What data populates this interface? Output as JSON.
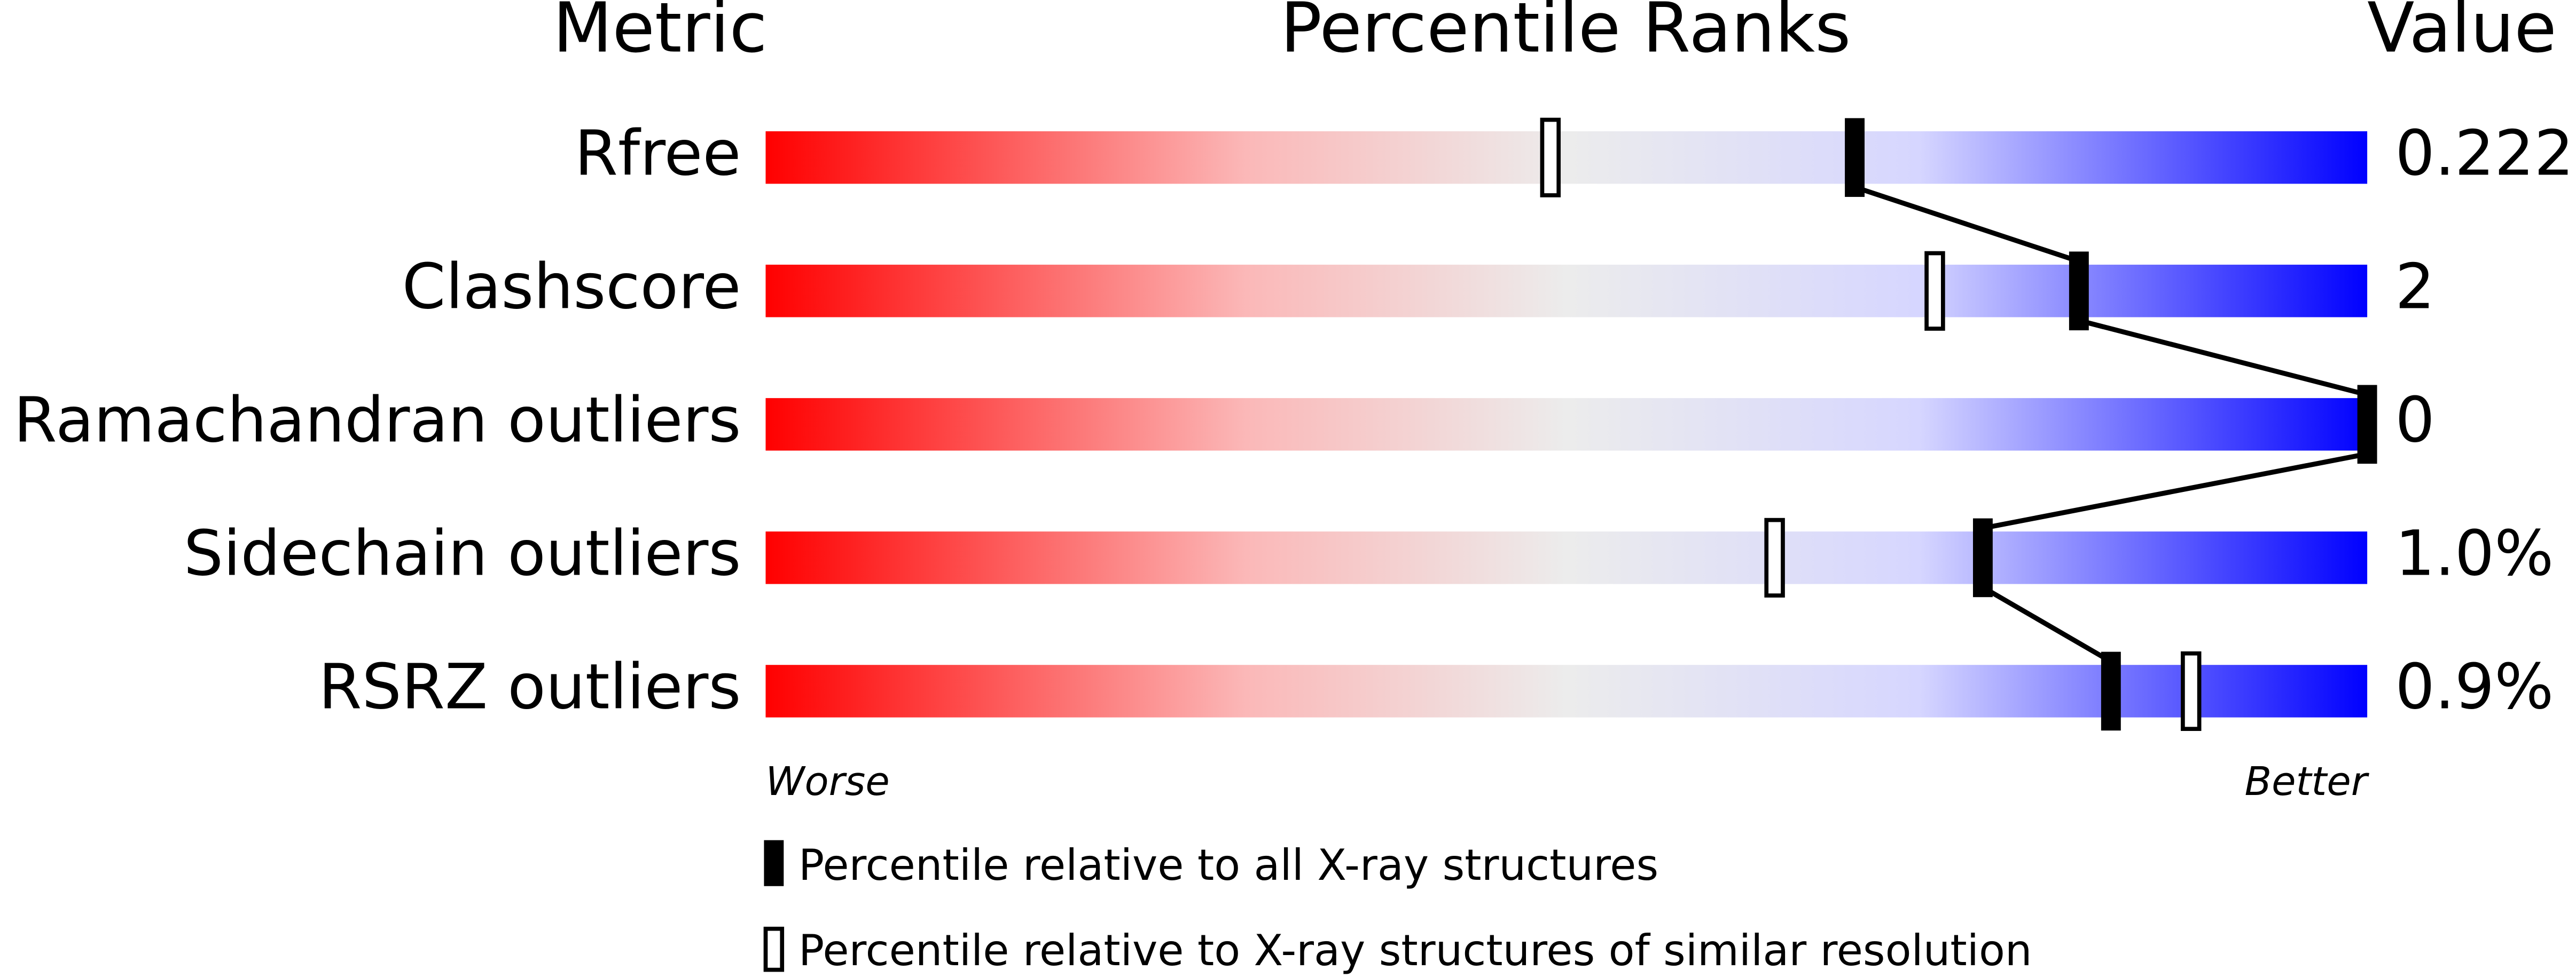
{
  "chart_data": {
    "type": "percentile",
    "header_metric": "Metric",
    "title": "Percentile Ranks",
    "header_value": "Value",
    "categories": [
      "Rfree",
      "Clashscore",
      "Ramachandran outliers",
      "Sidechain outliers",
      "RSRZ outliers"
    ],
    "metric_values": [
      "0.222",
      "2",
      "0",
      "1.0%",
      "0.9%"
    ],
    "series": [
      {
        "name": "Percentile relative to all X-ray structures",
        "color": "#000000",
        "values": [
          68,
          82,
          100,
          76,
          84
        ]
      },
      {
        "name": "Percentile relative to X-ray structures of similar resolution",
        "color": "#000000",
        "values": [
          49,
          73,
          null,
          63,
          89
        ]
      }
    ],
    "xlim": [
      0,
      100
    ],
    "x_label_low": "Worse",
    "x_label_high": "Better"
  }
}
